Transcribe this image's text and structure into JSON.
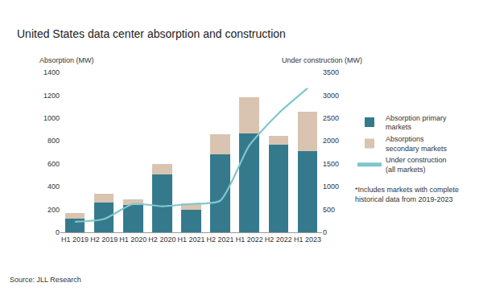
{
  "chart_data": {
    "type": "bar",
    "title": "United States data center absorption and construction",
    "ylabel": "Absorption (MW)",
    "y2label": "Under construction (MW)",
    "categories": [
      "H1 2019",
      "H2 2019",
      "H1 2020",
      "H2 2020",
      "H1 2021",
      "H2 2021",
      "H1 2022",
      "H2 2022",
      "H1 2023"
    ],
    "series": [
      {
        "name": "Absorption primary markets",
        "color": "#357a8c",
        "values": [
          120,
          260,
          240,
          510,
          195,
          685,
          865,
          765,
          710
        ]
      },
      {
        "name": "Absorptions secondary markets",
        "color": "#d9c4b1",
        "values": [
          50,
          80,
          45,
          90,
          60,
          170,
          315,
          80,
          345
        ]
      },
      {
        "name": "Under construction (all markets)",
        "color": "#7fc6ce",
        "type": "line",
        "axis": "y2",
        "values": [
          230,
          290,
          620,
          570,
          620,
          690,
          1900,
          2600,
          3150
        ]
      }
    ],
    "stacked": true,
    "ylim": [
      0,
      1400
    ],
    "yticks": [
      0,
      200,
      400,
      600,
      800,
      1000,
      1200,
      1400
    ],
    "y2lim": [
      0,
      3500
    ],
    "y2ticks": [
      0,
      500,
      1000,
      1500,
      2000,
      2500,
      3000,
      3500
    ],
    "grid": false,
    "legend": "right",
    "annotations": [
      "*Includes markets with complete historical data from 2019-2023"
    ],
    "source": "Source: JLL Research"
  }
}
